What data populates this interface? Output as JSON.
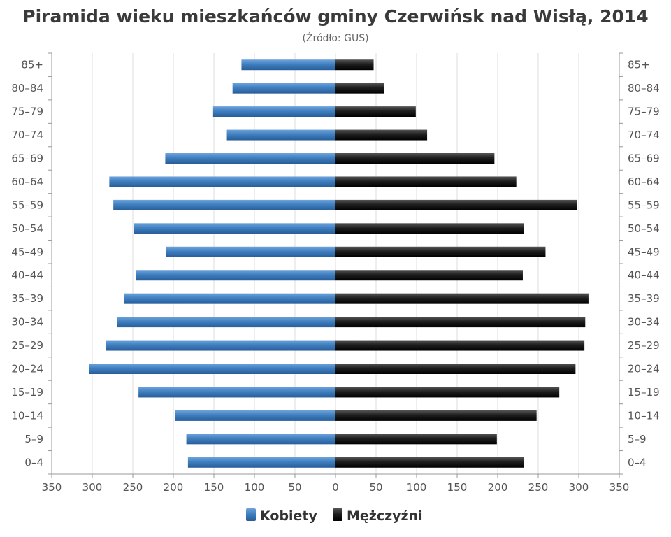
{
  "chart_data": {
    "type": "bar",
    "orientation": "horizontal-population-pyramid",
    "title": "Piramida wieku mieszkańców gminy Czerwińsk nad Wisłą, 2014",
    "subtitle": "(Źródło: GUS)",
    "categories": [
      "0–4",
      "5–9",
      "10–14",
      "15–19",
      "20–24",
      "25–29",
      "30–34",
      "35–39",
      "40–44",
      "45–49",
      "50–54",
      "55–59",
      "60–64",
      "65–69",
      "70–74",
      "75–79",
      "80–84",
      "85+"
    ],
    "series": [
      {
        "name": "Kobiety",
        "color": "#3f7fc0",
        "values": [
          182,
          184,
          198,
          243,
          304,
          283,
          269,
          261,
          246,
          209,
          249,
          274,
          279,
          210,
          134,
          151,
          127,
          116
        ]
      },
      {
        "name": "Mężczyźni",
        "color": "#1e1e1e",
        "values": [
          232,
          199,
          248,
          276,
          296,
          307,
          308,
          312,
          231,
          259,
          232,
          298,
          223,
          196,
          113,
          99,
          60,
          47
        ]
      }
    ],
    "xlim": [
      -350,
      350
    ],
    "xticks": [
      "350",
      "300",
      "250",
      "200",
      "150",
      "100",
      "50",
      "0",
      "50",
      "100",
      "150",
      "200",
      "250",
      "300",
      "350"
    ],
    "grid": true,
    "legend_position": "bottom"
  }
}
